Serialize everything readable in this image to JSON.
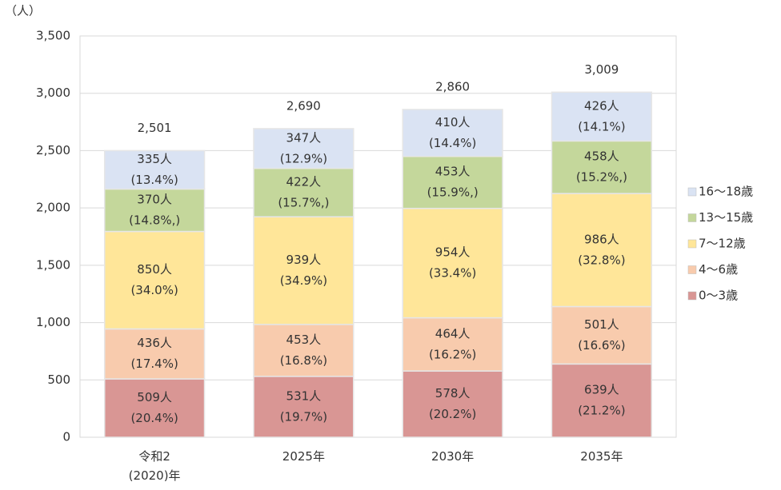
{
  "chart_data": {
    "type": "stacked_bar",
    "y_unit_label": "（人）",
    "categories": [
      "令和2\n(2020)年",
      "2025年",
      "2030年",
      "2035年"
    ],
    "series": [
      {
        "name": "0〜3歳",
        "color": "#d99694",
        "values": [
          509,
          531,
          578,
          639
        ],
        "value_labels": [
          "509人",
          "531人",
          "578人",
          "639人"
        ],
        "share_labels": [
          "(20.4%)",
          "(19.7%)",
          "(20.2%)",
          "(21.2%)"
        ]
      },
      {
        "name": "4〜6歳",
        "color": "#f8cbad",
        "values": [
          436,
          453,
          464,
          501
        ],
        "value_labels": [
          "436人",
          "453人",
          "464人",
          "501人"
        ],
        "share_labels": [
          "(17.4%)",
          "(16.8%)",
          "(16.2%)",
          "(16.6%)"
        ]
      },
      {
        "name": "7〜12歳",
        "color": "#ffe699",
        "values": [
          850,
          939,
          954,
          986
        ],
        "value_labels": [
          "850人",
          "939人",
          "954人",
          "986人"
        ],
        "share_labels": [
          "(34.0%)",
          "(34.9%)",
          "(33.4%)",
          "(32.8%)"
        ]
      },
      {
        "name": "13〜15歳",
        "color": "#c4d79b",
        "values": [
          370,
          422,
          453,
          458
        ],
        "value_labels": [
          "370人",
          "422人",
          "453人",
          "458人"
        ],
        "share_labels": [
          "(14.8%,)",
          "(15.7%,)",
          "(15.9%,)",
          "(15.2%,)"
        ]
      },
      {
        "name": "16〜18歳",
        "color": "#dae3f3",
        "values": [
          335,
          347,
          410,
          426
        ],
        "value_labels": [
          "335人",
          "347人",
          "410人",
          "426人"
        ],
        "share_labels": [
          "(13.4%)",
          "(12.9%)",
          "(14.4%)",
          "(14.1%)"
        ]
      }
    ],
    "totals": [
      2501,
      2690,
      2860,
      3009
    ],
    "total_labels": [
      "2,501",
      "2,690",
      "2,860",
      "3,009"
    ],
    "ylim": [
      0,
      3500
    ],
    "yticks": [
      0,
      500,
      {
        "value": 1000,
        "label": "1,000"
      },
      {
        "value": 1500,
        "label": "1,500"
      },
      {
        "value": 2000,
        "label": "2,000"
      },
      {
        "value": 2500,
        "label": "2,500"
      },
      {
        "value": 3000,
        "label": "3,000"
      },
      {
        "value": 3500,
        "label": "3,500"
      }
    ],
    "grid": true,
    "legend": "right"
  }
}
